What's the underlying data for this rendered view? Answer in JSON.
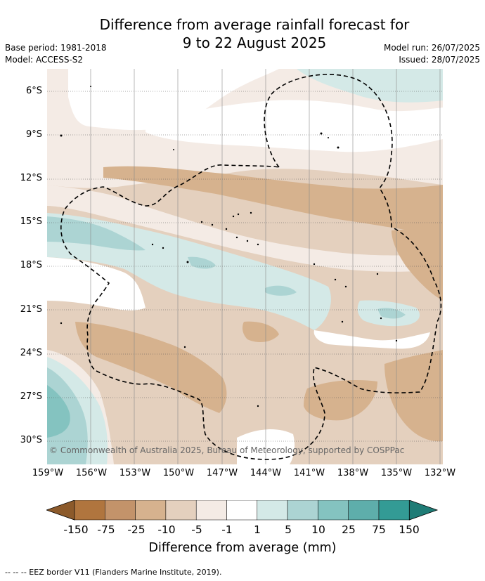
{
  "header": {
    "title_line1": "Difference from average rainfall forecast for",
    "title_line2": "9 to 22 August 2025",
    "base_period": "Base period: 1981-2018",
    "model": "Model: ACCESS-S2",
    "model_run": "Model run: 26/07/2025",
    "issued": "Issued: 28/07/2025"
  },
  "map": {
    "lat_labels": [
      "6°S",
      "9°S",
      "12°S",
      "15°S",
      "18°S",
      "21°S",
      "24°S",
      "27°S",
      "30°S"
    ],
    "lon_labels": [
      "159°W",
      "156°W",
      "153°W",
      "150°W",
      "147°W",
      "144°W",
      "141°W",
      "138°W",
      "135°W",
      "132°W"
    ],
    "copyright": "© Commonwealth of Australia 2025, Bureau of Meteorology, supported by COSPPac",
    "colors": {
      "minus150": "#a7773f",
      "minus75": "#c49a6c",
      "minus25": "#d6b28e",
      "minus10": "#e4d0be",
      "minus5": "#f4ebe5",
      "zero": "#ffffff",
      "plus1": "#d4e9e7",
      "plus5": "#acd4d3",
      "plus10": "#84c3c0",
      "plus25": "#5eaeab",
      "plus75": "#339b95",
      "plus150": "#1f7c76"
    }
  },
  "colorbar": {
    "labels": [
      "-150",
      "-75",
      "-25",
      "-10",
      "-5",
      "-1",
      "1",
      "5",
      "10",
      "25",
      "75",
      "150"
    ],
    "title": "Difference from average (mm)"
  },
  "legend": {
    "eez_note": "--  --  -- EEZ border V11 (Flanders Marine Institute, 2019)."
  }
}
